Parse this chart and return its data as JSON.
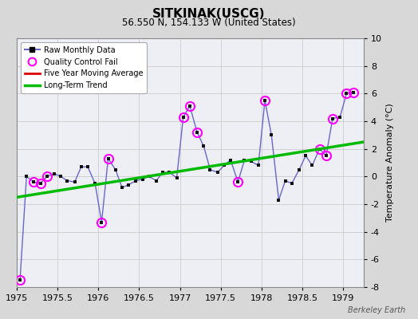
{
  "title": "SITKINAK(USCG)",
  "subtitle": "56.550 N, 154.133 W (United States)",
  "ylabel": "Temperature Anomaly (°C)",
  "credit": "Berkeley Earth",
  "xlim": [
    1975.0,
    1979.25
  ],
  "ylim": [
    -8,
    10
  ],
  "yticks": [
    -8,
    -6,
    -4,
    -2,
    0,
    2,
    4,
    6,
    8,
    10
  ],
  "xticks": [
    1975,
    1975.5,
    1976,
    1976.5,
    1977,
    1977.5,
    1978,
    1978.5,
    1979
  ],
  "xticklabels": [
    "1975",
    "1975.5",
    "1976",
    "1976.5",
    "1977",
    "1977.5",
    "1978",
    "1978.5",
    "1979"
  ],
  "bg_color": "#d8d8d8",
  "plot_bg_color": "#eeeef5",
  "raw_x": [
    1975.04,
    1975.12,
    1975.21,
    1975.29,
    1975.37,
    1975.46,
    1975.54,
    1975.62,
    1975.71,
    1975.79,
    1975.87,
    1975.96,
    1976.04,
    1976.12,
    1976.21,
    1976.29,
    1976.37,
    1976.46,
    1976.54,
    1976.62,
    1976.71,
    1976.79,
    1976.87,
    1976.96,
    1977.04,
    1977.12,
    1977.21,
    1977.29,
    1977.37,
    1977.46,
    1977.54,
    1977.62,
    1977.71,
    1977.79,
    1977.87,
    1977.96,
    1978.04,
    1978.12,
    1978.21,
    1978.29,
    1978.37,
    1978.46,
    1978.54,
    1978.62,
    1978.71,
    1978.79,
    1978.87,
    1978.96,
    1979.04,
    1979.12
  ],
  "raw_y": [
    -7.5,
    0.0,
    -0.4,
    -0.5,
    0.0,
    0.2,
    0.0,
    -0.3,
    -0.4,
    0.7,
    0.7,
    -0.5,
    -3.3,
    1.3,
    0.5,
    -0.8,
    -0.6,
    -0.3,
    -0.2,
    0.0,
    -0.3,
    0.3,
    0.3,
    -0.1,
    4.3,
    5.1,
    3.2,
    2.2,
    0.5,
    0.3,
    0.8,
    1.2,
    -0.4,
    1.2,
    1.1,
    0.8,
    5.5,
    3.0,
    -1.7,
    -0.3,
    -0.5,
    0.5,
    1.5,
    0.8,
    2.0,
    1.5,
    4.2,
    4.3,
    6.0,
    6.1
  ],
  "qc_fail_x": [
    1975.04,
    1975.21,
    1975.29,
    1975.37,
    1976.04,
    1976.12,
    1977.04,
    1977.12,
    1977.21,
    1977.71,
    1978.04,
    1978.71,
    1978.79,
    1978.87,
    1979.04,
    1979.12
  ],
  "qc_fail_y": [
    -7.5,
    -0.4,
    -0.5,
    0.0,
    -3.3,
    1.3,
    4.3,
    5.1,
    3.2,
    -0.4,
    5.5,
    2.0,
    1.5,
    4.2,
    6.0,
    6.1
  ],
  "trend_x": [
    1975.0,
    1979.25
  ],
  "trend_y": [
    -1.5,
    2.5
  ],
  "line_color": "#6666cc",
  "marker_color": "#111111",
  "qc_color": "#ff00ff",
  "trend_color": "#00bb00",
  "mavg_color": "#dd0000"
}
